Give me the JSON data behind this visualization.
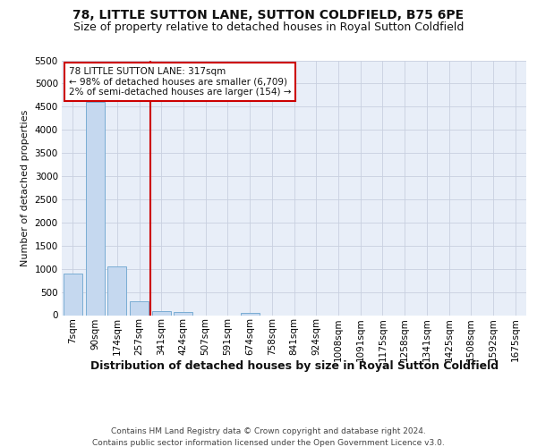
{
  "title": "78, LITTLE SUTTON LANE, SUTTON COLDFIELD, B75 6PE",
  "subtitle": "Size of property relative to detached houses in Royal Sutton Coldfield",
  "xlabel": "Distribution of detached houses by size in Royal Sutton Coldfield",
  "ylabel": "Number of detached properties",
  "footer_line1": "Contains HM Land Registry data © Crown copyright and database right 2024.",
  "footer_line2": "Contains public sector information licensed under the Open Government Licence v3.0.",
  "categories": [
    "7sqm",
    "90sqm",
    "174sqm",
    "257sqm",
    "341sqm",
    "424sqm",
    "507sqm",
    "591sqm",
    "674sqm",
    "758sqm",
    "841sqm",
    "924sqm",
    "1008sqm",
    "1091sqm",
    "1175sqm",
    "1258sqm",
    "1341sqm",
    "1425sqm",
    "1508sqm",
    "1592sqm",
    "1675sqm"
  ],
  "values": [
    900,
    4600,
    1050,
    300,
    80,
    75,
    0,
    0,
    55,
    0,
    0,
    0,
    0,
    0,
    0,
    0,
    0,
    0,
    0,
    0,
    0
  ],
  "bar_color": "#c5d8ef",
  "bar_edge_color": "#7aadd4",
  "vline_x": 3.5,
  "vline_color": "#cc0000",
  "ylim_max": 5500,
  "yticks": [
    0,
    500,
    1000,
    1500,
    2000,
    2500,
    3000,
    3500,
    4000,
    4500,
    5000,
    5500
  ],
  "annotation_text": "78 LITTLE SUTTON LANE: 317sqm\n← 98% of detached houses are smaller (6,709)\n2% of semi-detached houses are larger (154) →",
  "annotation_box_edgecolor": "#cc0000",
  "bg_color": "#e8eef8",
  "grid_color": "#c8d0e0",
  "title_fontsize": 10,
  "subtitle_fontsize": 9,
  "tick_fontsize": 7.5,
  "ylabel_fontsize": 8,
  "xlabel_fontsize": 9,
  "annotation_fontsize": 7.5,
  "footer_fontsize": 6.5
}
